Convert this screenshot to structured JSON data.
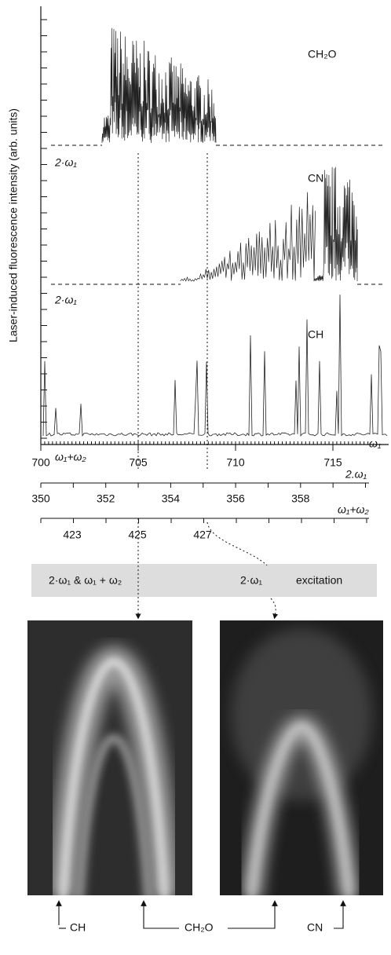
{
  "y_axis_label": "Laser-induced fluorescence intensity  (arb. units)",
  "traces": [
    "CH₂O",
    "CN",
    "CH"
  ],
  "baseline_labels": [
    "2·ω₁",
    "2·ω₁",
    "ω₁+ω₂"
  ],
  "axes": [
    {
      "label": "ω₁",
      "ticks": [
        700,
        705,
        710,
        715
      ]
    },
    {
      "label": "2.ω₁",
      "ticks": [
        350,
        352,
        354,
        356,
        358
      ]
    },
    {
      "label": "ω₁+ω₂",
      "ticks": [
        423,
        425,
        427
      ]
    }
  ],
  "banner": {
    "left": "2·ω₁ & ω₁ + ω₂",
    "middle": "2·ω₁",
    "right": "excitation"
  },
  "image_labels": [
    "CH",
    "CH₂O",
    "CN"
  ]
}
